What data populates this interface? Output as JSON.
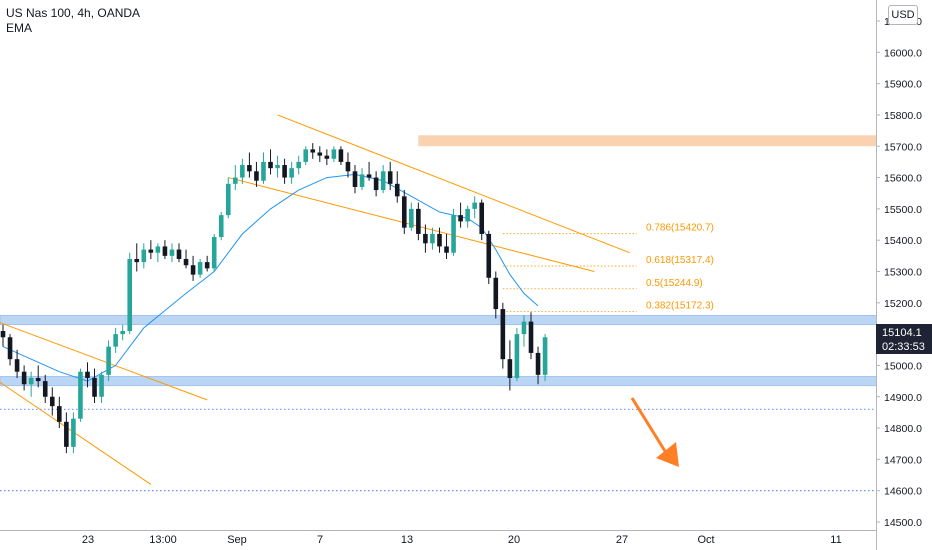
{
  "header": {
    "symbol_line": "US Nas 100, 4h, OANDA",
    "indicator": "EMA"
  },
  "currency": "USD",
  "price": {
    "last": "15104.1",
    "countdown": "02:33:53"
  },
  "colors": {
    "up": "#26a69a",
    "down": "#131722",
    "ema": "#2196f3",
    "channel": "#ff9800",
    "fib": "#ff9800",
    "zone_blue": "#bbd5f5",
    "zone_orange": "#fbd2b0",
    "arrow": "#ff7f27",
    "support_line": "#2962ff"
  },
  "chart_data": {
    "type": "candlestick",
    "ylim": [
      14500,
      16100
    ],
    "y_ticks": [
      "14500.0",
      "14600.0",
      "14700.0",
      "14800.0",
      "14900.0",
      "15000.0",
      "15100.0",
      "15200.0",
      "15300.0",
      "15400.0",
      "15500.0",
      "15600.0",
      "15700.0",
      "15800.0",
      "15900.0",
      "16000.0",
      "16100.0"
    ],
    "x_ticks": [
      "23",
      "13:00",
      "Sep",
      "7",
      "13",
      "20",
      "27",
      "Oct",
      "11"
    ],
    "candles": [
      [
        15110,
        15130,
        15060,
        15090
      ],
      [
        15090,
        15100,
        15000,
        15020
      ],
      [
        15020,
        15050,
        14960,
        14980
      ],
      [
        14980,
        15000,
        14920,
        14940
      ],
      [
        14940,
        14980,
        14900,
        14960
      ],
      [
        14960,
        15000,
        14930,
        14950
      ],
      [
        14950,
        14970,
        14880,
        14900
      ],
      [
        14900,
        14930,
        14840,
        14870
      ],
      [
        14870,
        14900,
        14800,
        14820
      ],
      [
        14820,
        14850,
        14720,
        14740
      ],
      [
        14740,
        14850,
        14720,
        14830
      ],
      [
        14830,
        14990,
        14820,
        14980
      ],
      [
        14980,
        15010,
        14930,
        14960
      ],
      [
        14960,
        14990,
        14880,
        14900
      ],
      [
        14900,
        14980,
        14880,
        14970
      ],
      [
        14970,
        15080,
        14950,
        15060
      ],
      [
        15060,
        15120,
        15040,
        15100
      ],
      [
        15100,
        15130,
        15080,
        15110
      ],
      [
        15110,
        15360,
        15100,
        15340
      ],
      [
        15340,
        15390,
        15300,
        15330
      ],
      [
        15330,
        15390,
        15310,
        15370
      ],
      [
        15370,
        15400,
        15340,
        15360
      ],
      [
        15360,
        15390,
        15330,
        15380
      ],
      [
        15380,
        15400,
        15340,
        15350
      ],
      [
        15350,
        15390,
        15330,
        15370
      ],
      [
        15370,
        15390,
        15330,
        15340
      ],
      [
        15340,
        15370,
        15310,
        15320
      ],
      [
        15320,
        15350,
        15270,
        15290
      ],
      [
        15290,
        15340,
        15280,
        15330
      ],
      [
        15330,
        15350,
        15300,
        15310
      ],
      [
        15310,
        15420,
        15300,
        15410
      ],
      [
        15410,
        15490,
        15400,
        15480
      ],
      [
        15480,
        15600,
        15470,
        15580
      ],
      [
        15580,
        15640,
        15560,
        15600
      ],
      [
        15600,
        15660,
        15580,
        15640
      ],
      [
        15640,
        15680,
        15600,
        15620
      ],
      [
        15620,
        15650,
        15570,
        15590
      ],
      [
        15590,
        15680,
        15580,
        15650
      ],
      [
        15650,
        15690,
        15610,
        15630
      ],
      [
        15630,
        15670,
        15600,
        15640
      ],
      [
        15640,
        15660,
        15580,
        15600
      ],
      [
        15600,
        15650,
        15580,
        15630
      ],
      [
        15630,
        15670,
        15610,
        15650
      ],
      [
        15650,
        15700,
        15640,
        15690
      ],
      [
        15690,
        15710,
        15660,
        15680
      ],
      [
        15680,
        15700,
        15650,
        15670
      ],
      [
        15670,
        15690,
        15640,
        15660
      ],
      [
        15660,
        15700,
        15650,
        15690
      ],
      [
        15690,
        15700,
        15640,
        15650
      ],
      [
        15650,
        15680,
        15600,
        15620
      ],
      [
        15620,
        15640,
        15550,
        15570
      ],
      [
        15570,
        15630,
        15560,
        15610
      ],
      [
        15610,
        15650,
        15590,
        15600
      ],
      [
        15600,
        15620,
        15540,
        15560
      ],
      [
        15560,
        15640,
        15550,
        15620
      ],
      [
        15620,
        15650,
        15560,
        15580
      ],
      [
        15580,
        15620,
        15520,
        15540
      ],
      [
        15540,
        15560,
        15420,
        15440
      ],
      [
        15440,
        15520,
        15430,
        15500
      ],
      [
        15500,
        15520,
        15400,
        15420
      ],
      [
        15420,
        15450,
        15360,
        15390
      ],
      [
        15390,
        15440,
        15370,
        15420
      ],
      [
        15420,
        15440,
        15360,
        15380
      ],
      [
        15380,
        15420,
        15340,
        15360
      ],
      [
        15360,
        15500,
        15350,
        15480
      ],
      [
        15480,
        15520,
        15440,
        15460
      ],
      [
        15460,
        15510,
        15440,
        15500
      ],
      [
        15500,
        15540,
        15470,
        15520
      ],
      [
        15520,
        15530,
        15400,
        15420
      ],
      [
        15420,
        15430,
        15260,
        15280
      ],
      [
        15280,
        15300,
        15150,
        15180
      ],
      [
        15180,
        15200,
        14990,
        15020
      ],
      [
        15020,
        15080,
        14920,
        14960
      ],
      [
        14960,
        15120,
        14950,
        15100
      ],
      [
        15100,
        15160,
        15060,
        15140
      ],
      [
        15140,
        15170,
        15020,
        15040
      ],
      [
        15040,
        15060,
        14940,
        14970
      ],
      [
        14970,
        15100,
        14950,
        15090
      ]
    ],
    "ema": [
      [
        0,
        15060
      ],
      [
        8,
        14980
      ],
      [
        12,
        14950
      ],
      [
        16,
        15000
      ],
      [
        20,
        15120
      ],
      [
        26,
        15230
      ],
      [
        30,
        15300
      ],
      [
        34,
        15420
      ],
      [
        38,
        15500
      ],
      [
        42,
        15560
      ],
      [
        46,
        15600
      ],
      [
        50,
        15610
      ],
      [
        54,
        15590
      ],
      [
        58,
        15540
      ],
      [
        62,
        15490
      ],
      [
        66,
        15470
      ],
      [
        68,
        15440
      ],
      [
        70,
        15370
      ],
      [
        72,
        15290
      ],
      [
        74,
        15230
      ],
      [
        76,
        15190
      ]
    ],
    "annotations": [
      {
        "type": "zone",
        "label": "resistance",
        "y0": 15700,
        "y1": 15735,
        "x0": 59,
        "x1": 159
      },
      {
        "type": "zone",
        "label": "upper-support",
        "y0": 15130,
        "y1": 15160,
        "x0": -2,
        "x1": 190
      },
      {
        "type": "zone",
        "label": "lower-support",
        "y0": 14935,
        "y1": 14965,
        "x0": -2,
        "x1": 266
      },
      {
        "type": "hline",
        "y": 14860
      },
      {
        "type": "hline",
        "y": 14600
      }
    ],
    "fib_levels": [
      {
        "label": "0.786(15420.7)",
        "value": 15420.7
      },
      {
        "label": "0.618(15317.4)",
        "value": 15317.4
      },
      {
        "label": "0.5(15244.9)",
        "value": 15244.9
      },
      {
        "label": "0.382(15172.3)",
        "value": 15172.3
      }
    ]
  }
}
